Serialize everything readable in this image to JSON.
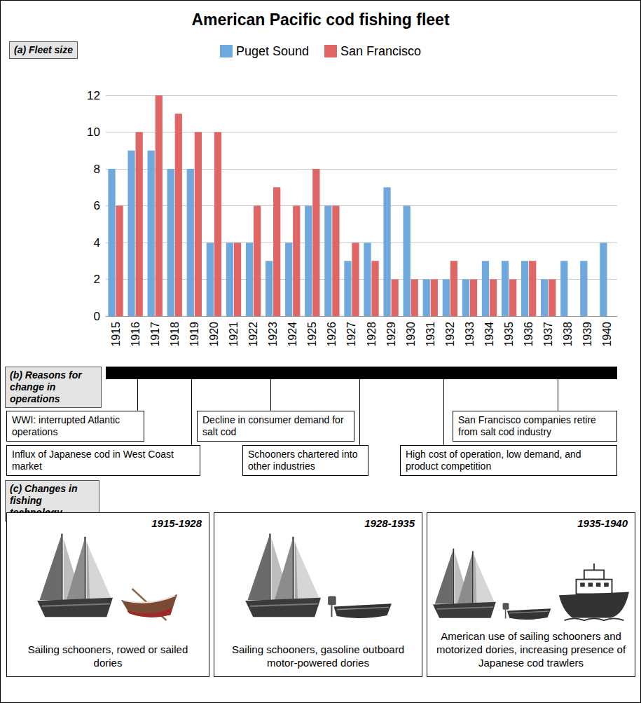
{
  "title": "American Pacific cod fishing fleet",
  "chart_data": {
    "type": "bar",
    "title": "(a) Fleet size",
    "categories": [
      "1915",
      "1916",
      "1917",
      "1918",
      "1919",
      "1920",
      "1921",
      "1922",
      "1923",
      "1924",
      "1925",
      "1926",
      "1927",
      "1928",
      "1929",
      "1930",
      "1931",
      "1932",
      "1933",
      "1934",
      "1935",
      "1936",
      "1937",
      "1938",
      "1939",
      "1940"
    ],
    "series": [
      {
        "name": "Puget Sound",
        "color": "#6fa8dc",
        "values": [
          8,
          9,
          9,
          8,
          8,
          4,
          4,
          4,
          3,
          4,
          6,
          6,
          3,
          4,
          7,
          6,
          2,
          2,
          2,
          3,
          3,
          3,
          2,
          3,
          3,
          4
        ]
      },
      {
        "name": "San Francisco",
        "color": "#e06666",
        "values": [
          6,
          10,
          12,
          11,
          10,
          10,
          4,
          6,
          7,
          6,
          8,
          6,
          4,
          3,
          2,
          2,
          2,
          3,
          2,
          2,
          2,
          3,
          2,
          null,
          null,
          null
        ]
      }
    ],
    "ylim": [
      0,
      12
    ],
    "yticks": [
      0,
      2,
      4,
      6,
      8,
      10,
      12
    ],
    "grid": true,
    "legend": "top"
  },
  "reasons": {
    "label": "(b) Reasons for change in operations",
    "events": [
      "WWI: interrupted Atlantic operations",
      "Influx of Japanese cod in West Coast market",
      "Decline in consumer demand for salt cod",
      "Schooners chartered into other industries",
      "High cost of operation, low demand, and product competition",
      "San Francisco companies retire from salt cod industry"
    ]
  },
  "technology": {
    "label": "(c) Changes in fishing technology",
    "panels": [
      {
        "period": "1915-1928",
        "caption": "Sailing schooners, rowed or sailed dories"
      },
      {
        "period": "1928-1935",
        "caption": "Sailing schooners, gasoline outboard motor-powered dories"
      },
      {
        "period": "1935-1940",
        "caption": "American use of sailing schooners and motorized dories, increasing presence of Japanese cod trawlers"
      }
    ]
  }
}
